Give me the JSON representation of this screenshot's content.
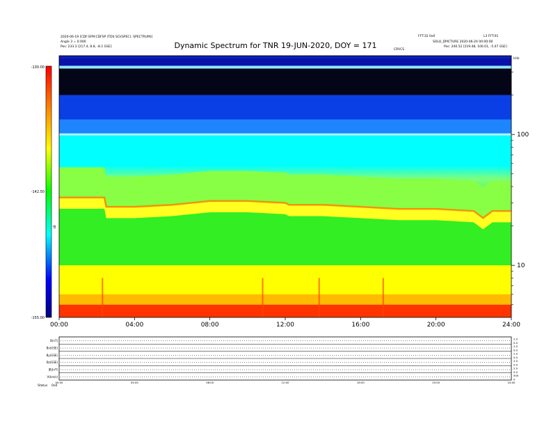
{
  "header": {
    "title": "Dynamic Spectrum for TNR 19-JUN-2020, DOY = 171",
    "left_line1": "2020-06-19 [CDF:SFM:CDFSP (TDS SCI(SPEC): SPECTRUM)]",
    "left_line2": "Angle 3 = 0.000",
    "left_line3": "Pos: 233.3 [217.4, 8.8, -8.1 GSE]",
    "right_line1": "FFT:32 0x0",
    "right_line2": "L3 FFT:01",
    "right_line3": "SOLO_DPICTURE 2020-06-20 00:00:00",
    "right_line4": "Pos: 240.52 [219.48, 100.01, -5.07 GSE]",
    "marker": "CRVCS",
    "corner": "kHz"
  },
  "chart_data": {
    "type": "heatmap",
    "title": "Dynamic Spectrum for TNR 19-JUN-2020, DOY = 171",
    "x": {
      "label": "",
      "range_hours": [
        0,
        24
      ],
      "tick_labels": [
        "00:00",
        "04:00",
        "08:00",
        "12:00",
        "16:00",
        "20:00",
        "24:00"
      ]
    },
    "y": {
      "label": "kHz",
      "scale": "log",
      "range": [
        4,
        400
      ],
      "tick_labels": [
        "100",
        "10"
      ],
      "tick_values": [
        100,
        10
      ]
    },
    "colorbar": {
      "label": "dB",
      "tick_labels": [
        "-130.00",
        "-142.50",
        "-155.00"
      ],
      "range": [
        -155,
        -130
      ],
      "colors": [
        "#ff0000",
        "#ff8800",
        "#ffff00",
        "#00ff00",
        "#00ffff",
        "#0000ff",
        "#000080"
      ]
    },
    "spectrum_features": {
      "band_lower_edge_kHz": 10,
      "bright_line_kHz": 100,
      "boundary_levels_hours": [
        0,
        2.4,
        2.5,
        4,
        6,
        8,
        10,
        12,
        12.2,
        14,
        16,
        18,
        20,
        22,
        22.5,
        23,
        24
      ],
      "boundary_levels_kHz": [
        33,
        33,
        28,
        28,
        29,
        31,
        31,
        30,
        29,
        29,
        28,
        27,
        27,
        26,
        23,
        26,
        26
      ],
      "bursts_hours": [
        13.8,
        2.3,
        10.8,
        17.2
      ]
    }
  },
  "aux_panel": {
    "row_labels": [
      "B(nT)",
      "Bx(GSE)",
      "By(GSE)",
      "Bz(GSE)",
      "|B|(nT)",
      "V(km/s)"
    ],
    "right_labels": [
      "2.0",
      "0.0",
      "2.0",
      "0.0",
      "2.0",
      "0.0",
      "2.0",
      "0.0",
      "2.0",
      "0.0",
      "500",
      "0"
    ],
    "time_labels": [
      "00:00",
      "04:00",
      "08:00",
      "12:00",
      "16:00",
      "20:00",
      "24:00"
    ],
    "footer_label": "Status",
    "footer_value": "0x0"
  }
}
